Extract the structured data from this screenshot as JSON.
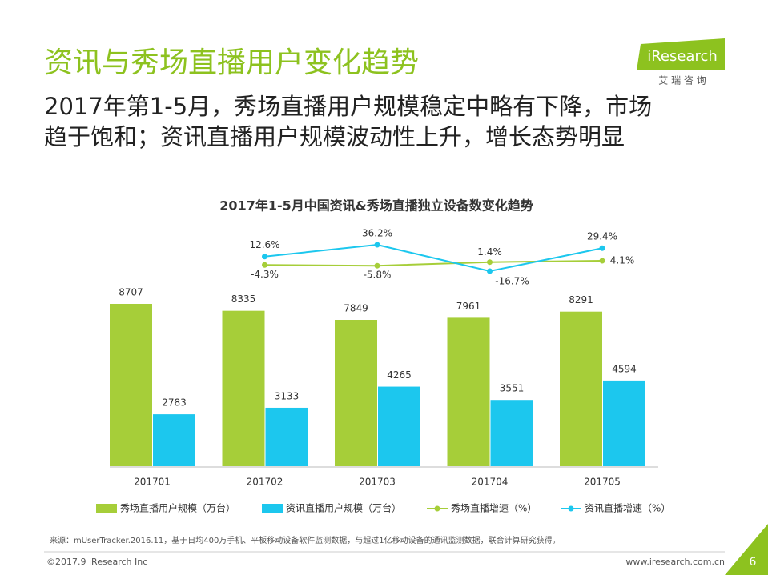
{
  "header": {
    "title": "资讯与秀场直播用户变化趋势",
    "subtitle_lines": [
      "2017年第1-5月，秀场直播用户规模稳定中略有下降，市场",
      "趋于饱和；资讯直播用户规模波动性上升，增长态势明显"
    ]
  },
  "logo": {
    "name": "iResearch",
    "cn": "艾 瑞 咨 询"
  },
  "chart_data": {
    "type": "bar",
    "title": "2017年1-5月中国资讯&秀场直播独立设备数变化趋势",
    "categories": [
      "201701",
      "201702",
      "201703",
      "201704",
      "201705"
    ],
    "series": [
      {
        "name": "秀场直播用户规模（万台）",
        "color": "#a6ce39",
        "values": [
          8707,
          8335,
          7849,
          7961,
          8291
        ]
      },
      {
        "name": "资讯直播用户规模（万台）",
        "color": "#1cc7ee",
        "values": [
          2783,
          3133,
          4265,
          3551,
          4594
        ]
      },
      {
        "name": "秀场直播增速（%）",
        "color": "#a6ce39",
        "type": "line",
        "values": [
          null,
          -4.3,
          -5.8,
          1.4,
          4.1
        ],
        "value_labels": [
          null,
          "-4.3%",
          "-5.8%",
          "1.4%",
          "4.1%"
        ]
      },
      {
        "name": "资讯直播增速（%）",
        "color": "#1cc7ee",
        "type": "line",
        "values": [
          null,
          12.6,
          36.2,
          -16.7,
          29.4
        ],
        "value_labels": [
          null,
          "12.6%",
          "36.2%",
          "-16.7%",
          "29.4%"
        ]
      }
    ]
  },
  "source": "来源：mUserTracker.2016.11，基于日均400万手机、平板移动设备软件监测数据，与超过1亿移动设备的通讯监测数据，联合计算研究获得。",
  "footer": {
    "copyright": "©2017.9 iResearch Inc",
    "url": "www.iresearch.com.cn",
    "page": "6"
  }
}
